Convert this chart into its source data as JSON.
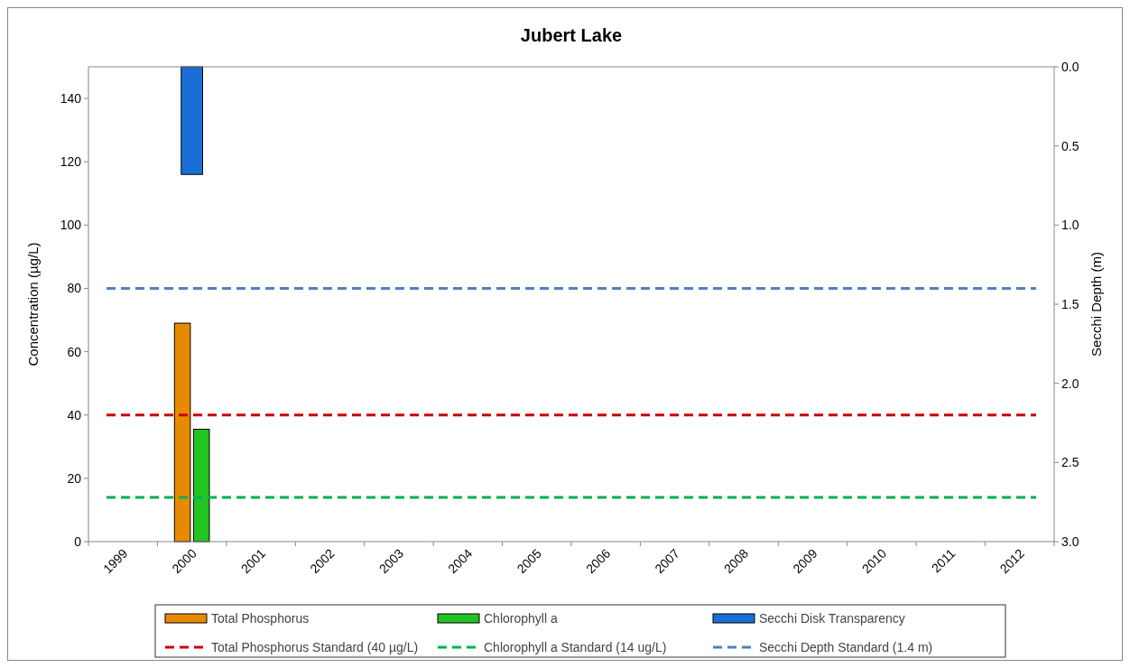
{
  "chart_data": {
    "type": "bar",
    "title": "Jubert Lake",
    "ylabel": "Concentration (µg/L)",
    "y2label": "Secchi Depth (m)",
    "categories": [
      "1999",
      "2000",
      "2001",
      "2002",
      "2003",
      "2004",
      "2005",
      "2006",
      "2007",
      "2008",
      "2009",
      "2010",
      "2011",
      "2012"
    ],
    "series": [
      {
        "name": "Total Phosphorus",
        "color": "#e88a00",
        "values": [
          null,
          69,
          null,
          null,
          null,
          null,
          null,
          null,
          null,
          null,
          null,
          null,
          null,
          null
        ]
      },
      {
        "name": "Chlorophyll a",
        "color": "#22c422",
        "values": [
          null,
          35.5,
          null,
          null,
          null,
          null,
          null,
          null,
          null,
          null,
          null,
          null,
          null,
          null
        ]
      },
      {
        "name": "Secchi Disk Transparency",
        "color": "#1a6fd6",
        "axis": "y2",
        "values": [
          null,
          0.68,
          null,
          null,
          null,
          null,
          null,
          null,
          null,
          null,
          null,
          null,
          null,
          null
        ]
      }
    ],
    "ylim": [
      0,
      150
    ],
    "yticks": [
      0,
      20,
      40,
      60,
      80,
      100,
      120,
      140
    ],
    "y2lim": [
      3,
      0
    ],
    "y2ticks": [
      {
        "value": 0,
        "label": "0.0"
      },
      {
        "value": 0.5,
        "label": "0.5"
      },
      {
        "value": 1,
        "label": "1.0"
      },
      {
        "value": 1.5,
        "label": "1.5"
      },
      {
        "value": 2,
        "label": "2.0"
      },
      {
        "value": 2.5,
        "label": "2.5"
      },
      {
        "value": 3,
        "label": "3.0"
      }
    ],
    "ref_lines": [
      {
        "axis": "y",
        "value": 40,
        "label": "Total Phosphorus Standard (40 µg/L)",
        "color": "#cc0000",
        "line_style": "dashed"
      },
      {
        "axis": "y",
        "value": 14,
        "label": "Chlorophyll a Standard (14 ug/L)",
        "color": "#00b050",
        "line_style": "dashed"
      },
      {
        "axis": "y2",
        "value": 1.4,
        "label": "Secchi Depth Standard (1.4 m)",
        "color": "#4f81bd",
        "line_style": "dashed"
      }
    ],
    "legend": "bottom"
  }
}
